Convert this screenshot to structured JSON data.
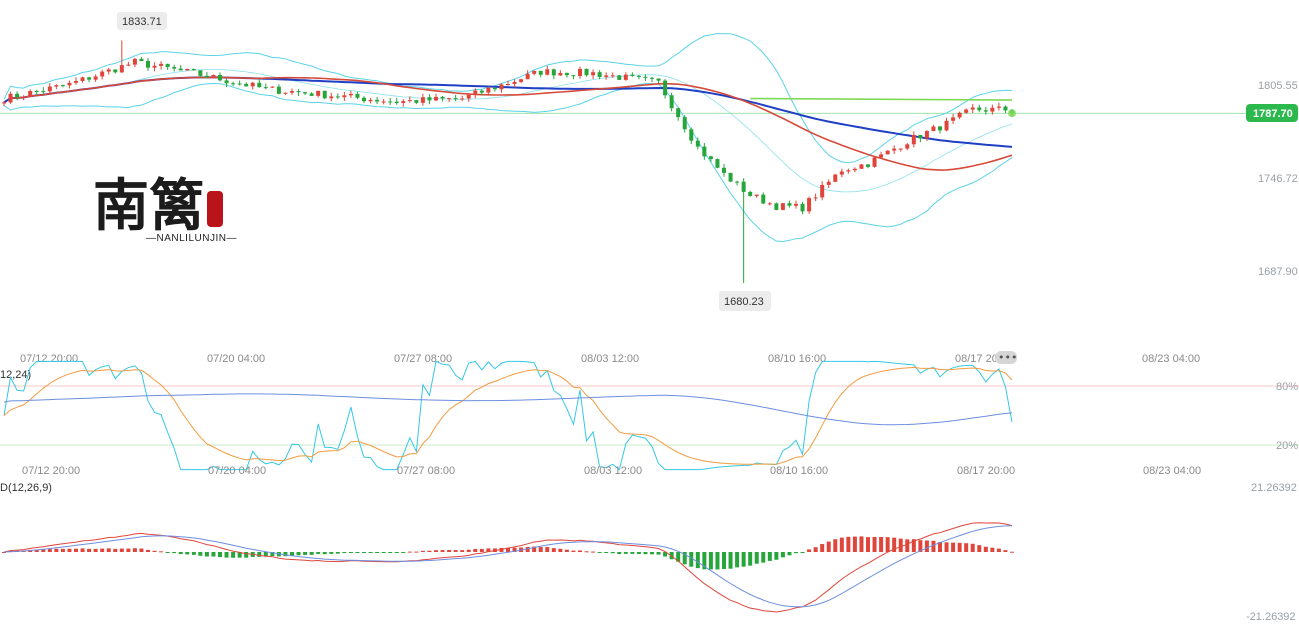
{
  "logo": {
    "han": "南篱",
    "sub": "—NANLILUNJIN—"
  },
  "price_panel": {
    "right_axis": [
      "1805.55",
      "1746.72",
      "1687.90"
    ],
    "last_price": "1787.70",
    "high_marker": "1833.71",
    "low_marker": "1680.23"
  },
  "time_axis_1": [
    "07/12 20:00",
    "07/20 04:00",
    "07/27 08:00",
    "08/03 12:00",
    "08/10 16:00",
    "08/17 20:00",
    "08/23 04:00"
  ],
  "kdj_panel": {
    "title": "12,24)",
    "levels": [
      "80%",
      "20%"
    ]
  },
  "time_axis_2": [
    "07/12 20:00",
    "07/20 04:00",
    "07/27 08:00",
    "08/03 12:00",
    "08/10 16:00",
    "08/17 20:00",
    "08/23 04:00"
  ],
  "macd_panel": {
    "title": "D(12,26,9)",
    "max": "21.26392",
    "min": "-21.26392"
  },
  "colors": {
    "up": "#e0453b",
    "down": "#26a63a",
    "boll": "#5ad3e8",
    "ma_long": "#1f3fc4",
    "ma_mid": "#d64a3a",
    "ma_green": "#7ed957",
    "k": "#35c8e6",
    "d": "#f39b40",
    "j": "#6c8ee0",
    "last_price_bg": "#2cb84d"
  },
  "chart_data": [
    {
      "type": "candlestick",
      "title": "",
      "ylim": [
        1660,
        1845
      ],
      "yticks": [
        1805.55,
        1746.72,
        1687.9
      ],
      "last_price": 1787.7,
      "annotated_high": 1833.71,
      "annotated_low": 1680.23,
      "anchors": [
        [
          0,
          1797
        ],
        [
          10,
          1806
        ],
        [
          20,
          1820
        ],
        [
          30,
          1812
        ],
        [
          40,
          1803
        ],
        [
          50,
          1799
        ],
        [
          60,
          1795
        ],
        [
          70,
          1797
        ],
        [
          82,
          1814
        ],
        [
          90,
          1813
        ],
        [
          100,
          1807
        ],
        [
          106,
          1766
        ],
        [
          110,
          1749
        ],
        [
          114,
          1736
        ],
        [
          118,
          1729
        ],
        [
          122,
          1728
        ],
        [
          128,
          1752
        ],
        [
          132,
          1756
        ],
        [
          138,
          1770
        ],
        [
          144,
          1781
        ],
        [
          148,
          1790
        ],
        [
          154,
          1790
        ]
      ]
    },
    {
      "type": "line",
      "title": "",
      "levels": [
        80,
        20
      ],
      "series": []
    },
    {
      "type": "bar",
      "title": "",
      "ylim": [
        -21.26392,
        21.26392
      ],
      "series": []
    }
  ]
}
